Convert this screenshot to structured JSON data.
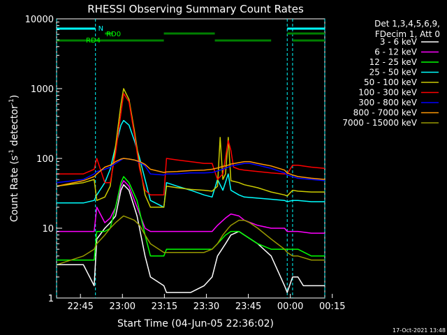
{
  "chart_data": {
    "type": "line",
    "title": "RHESSI Observing Summary Count Rates",
    "xlabel": "Start Time (04-Jun-05 22:36:02)",
    "ylabel_parts": [
      "Count Rate (s",
      "-1",
      " detector",
      "-1",
      ")"
    ],
    "yscale": "log",
    "ylim": [
      1,
      10000
    ],
    "xlim_minutes": [
      0,
      100
    ],
    "x_ticks": [
      "22:45",
      "23:00",
      "23:15",
      "23:30",
      "23:45",
      "00:00",
      "00:15"
    ],
    "y_ticks": [
      "1",
      "10",
      "100",
      "1000",
      "10000"
    ],
    "legend_header": [
      "Det 1,3,4,5,6,9,",
      "FDecim 1, Att 0"
    ],
    "legend_position": "right",
    "timestamp": "17-Oct-2021 13:48",
    "grid": false,
    "annotations": {
      "night_label": "N",
      "saa_labels": [
        "RD0",
        "RD4"
      ],
      "night_bars": [
        [
          0,
          14.5
        ],
        [
          86,
          100
        ]
      ],
      "saa_bars_upper": [
        [
          18,
          21
        ],
        [
          40,
          59
        ],
        [
          86,
          100
        ]
      ],
      "saa_bars_lower": [
        [
          0,
          40
        ],
        [
          59,
          80
        ],
        [
          88,
          100
        ]
      ],
      "vertical_markers": [
        0,
        14.5,
        86,
        88,
        100
      ]
    },
    "series": [
      {
        "name": "3 - 6 keV",
        "color": "#ffffff",
        "x": [
          0,
          10,
          14,
          15,
          18,
          20,
          22,
          24,
          25,
          27,
          30,
          33,
          35,
          40,
          41,
          42,
          45,
          50,
          55,
          58,
          60,
          63,
          65,
          68,
          70,
          75,
          80,
          85,
          86,
          88,
          90,
          92,
          95,
          98,
          100
        ],
        "y": [
          3,
          3,
          1.5,
          7,
          10,
          12,
          15,
          35,
          42,
          35,
          15,
          4,
          2,
          1.5,
          1.2,
          1.2,
          1.2,
          1.2,
          1.5,
          2,
          4,
          6,
          8,
          9,
          8,
          6,
          4,
          1.5,
          1.2,
          2,
          2,
          1.5,
          1.5,
          1.5,
          1.5
        ]
      },
      {
        "name": "6 - 12 keV",
        "color": "#ff00ff",
        "x": [
          0,
          10,
          14,
          15,
          18,
          20,
          22,
          24,
          25,
          27,
          30,
          33,
          35,
          40,
          45,
          50,
          55,
          58,
          60,
          63,
          65,
          68,
          70,
          75,
          80,
          85,
          86,
          88,
          90,
          95,
          100
        ],
        "y": [
          9,
          9,
          9,
          20,
          12,
          14,
          20,
          40,
          48,
          40,
          20,
          10,
          9,
          9,
          9,
          9,
          9,
          9,
          11,
          14,
          16,
          15,
          13,
          11,
          10,
          10,
          9,
          9,
          9,
          8.5,
          8.5
        ]
      },
      {
        "name": "12 - 25 keV",
        "color": "#00ff00",
        "x": [
          0,
          10,
          14,
          15,
          18,
          20,
          22,
          24,
          25,
          27,
          30,
          33,
          35,
          40,
          41,
          45,
          50,
          55,
          58,
          60,
          63,
          65,
          68,
          70,
          75,
          80,
          85,
          86,
          88,
          90,
          95,
          100
        ],
        "y": [
          3.5,
          3.5,
          3.5,
          9,
          9,
          10,
          20,
          45,
          55,
          45,
          25,
          8,
          4,
          4,
          5,
          5,
          5,
          5,
          5,
          6,
          8,
          9,
          9,
          8,
          6,
          5,
          5,
          5,
          5,
          5,
          4,
          4
        ]
      },
      {
        "name": "25 - 50 keV",
        "color": "#00ffff",
        "x": [
          0,
          10,
          14,
          15,
          18,
          20,
          22,
          24,
          25,
          27,
          29,
          31,
          33,
          35,
          40,
          41,
          45,
          50,
          55,
          58,
          60,
          62,
          64,
          65,
          68,
          70,
          75,
          80,
          85,
          86,
          88,
          90,
          95,
          100
        ],
        "y": [
          23,
          23,
          25,
          30,
          45,
          70,
          150,
          300,
          350,
          300,
          180,
          100,
          50,
          25,
          20,
          45,
          40,
          35,
          30,
          28,
          50,
          35,
          60,
          35,
          30,
          28,
          27,
          26,
          25,
          24,
          25,
          25,
          24,
          24
        ]
      },
      {
        "name": "50 - 100 keV",
        "color": "#cccc00",
        "x": [
          0,
          10,
          14,
          15,
          18,
          20,
          22,
          24,
          25,
          27,
          29,
          31,
          33,
          35,
          40,
          41,
          45,
          50,
          55,
          58,
          60,
          61,
          62,
          63,
          64,
          65,
          68,
          70,
          75,
          80,
          85,
          86,
          88,
          90,
          95,
          100
        ],
        "y": [
          40,
          45,
          50,
          25,
          28,
          40,
          150,
          600,
          1000,
          700,
          250,
          80,
          30,
          20,
          20,
          40,
          38,
          36,
          35,
          34,
          40,
          200,
          50,
          60,
          200,
          48,
          45,
          42,
          38,
          33,
          30,
          29,
          35,
          34,
          33,
          33
        ]
      },
      {
        "name": "100 - 300 keV",
        "color": "#ff0000",
        "x": [
          0,
          10,
          14,
          15,
          18,
          20,
          22,
          24,
          25,
          27,
          29,
          31,
          33,
          35,
          40,
          41,
          45,
          50,
          55,
          58,
          60,
          62,
          64,
          65,
          66,
          68,
          70,
          75,
          80,
          85,
          86,
          88,
          90,
          95,
          100
        ],
        "y": [
          60,
          60,
          70,
          100,
          45,
          45,
          120,
          450,
          850,
          650,
          220,
          70,
          35,
          30,
          30,
          100,
          95,
          90,
          85,
          85,
          50,
          60,
          180,
          130,
          75,
          70,
          68,
          65,
          62,
          60,
          60,
          80,
          80,
          75,
          72
        ]
      },
      {
        "name": "300 - 800 keV",
        "color": "#0000ff",
        "x": [
          0,
          10,
          14,
          15,
          18,
          20,
          22,
          24,
          25,
          27,
          29,
          31,
          33,
          35,
          40,
          41,
          45,
          50,
          55,
          58,
          60,
          62,
          64,
          65,
          68,
          70,
          72,
          75,
          80,
          85,
          86,
          88,
          90,
          95,
          100
        ],
        "y": [
          45,
          50,
          60,
          65,
          70,
          75,
          85,
          95,
          100,
          98,
          95,
          88,
          78,
          60,
          58,
          60,
          60,
          62,
          62,
          63,
          66,
          70,
          75,
          78,
          82,
          85,
          85,
          80,
          72,
          62,
          58,
          55,
          52,
          50,
          48
        ]
      },
      {
        "name": "800 - 7000 keV",
        "color": "#ff9900",
        "x": [
          0,
          10,
          14,
          15,
          18,
          20,
          22,
          24,
          25,
          27,
          29,
          31,
          33,
          35,
          40,
          41,
          45,
          50,
          55,
          58,
          60,
          62,
          64,
          65,
          68,
          70,
          72,
          75,
          80,
          85,
          86,
          88,
          90,
          95,
          100
        ],
        "y": [
          40,
          48,
          55,
          60,
          75,
          80,
          90,
          98,
          100,
          98,
          95,
          90,
          82,
          70,
          63,
          64,
          65,
          67,
          68,
          70,
          73,
          77,
          80,
          83,
          87,
          90,
          90,
          85,
          78,
          68,
          62,
          58,
          55,
          52,
          50
        ]
      },
      {
        "name": "7000 - 15000 keV",
        "color": "#999900",
        "x": [
          0,
          10,
          14,
          15,
          18,
          20,
          22,
          24,
          25,
          27,
          29,
          31,
          33,
          35,
          40,
          41,
          45,
          50,
          55,
          58,
          60,
          62,
          64,
          65,
          68,
          70,
          72,
          75,
          80,
          85,
          86,
          88,
          90,
          95,
          100
        ],
        "y": [
          3,
          4,
          5,
          6,
          8,
          10,
          12,
          14,
          15,
          14,
          13,
          11,
          8,
          6,
          4.5,
          4.5,
          4.5,
          4.5,
          4.5,
          5,
          6,
          8,
          10,
          11,
          13,
          13,
          12,
          10,
          7,
          5,
          4.5,
          4,
          4,
          3.5,
          3.5
        ]
      }
    ]
  }
}
